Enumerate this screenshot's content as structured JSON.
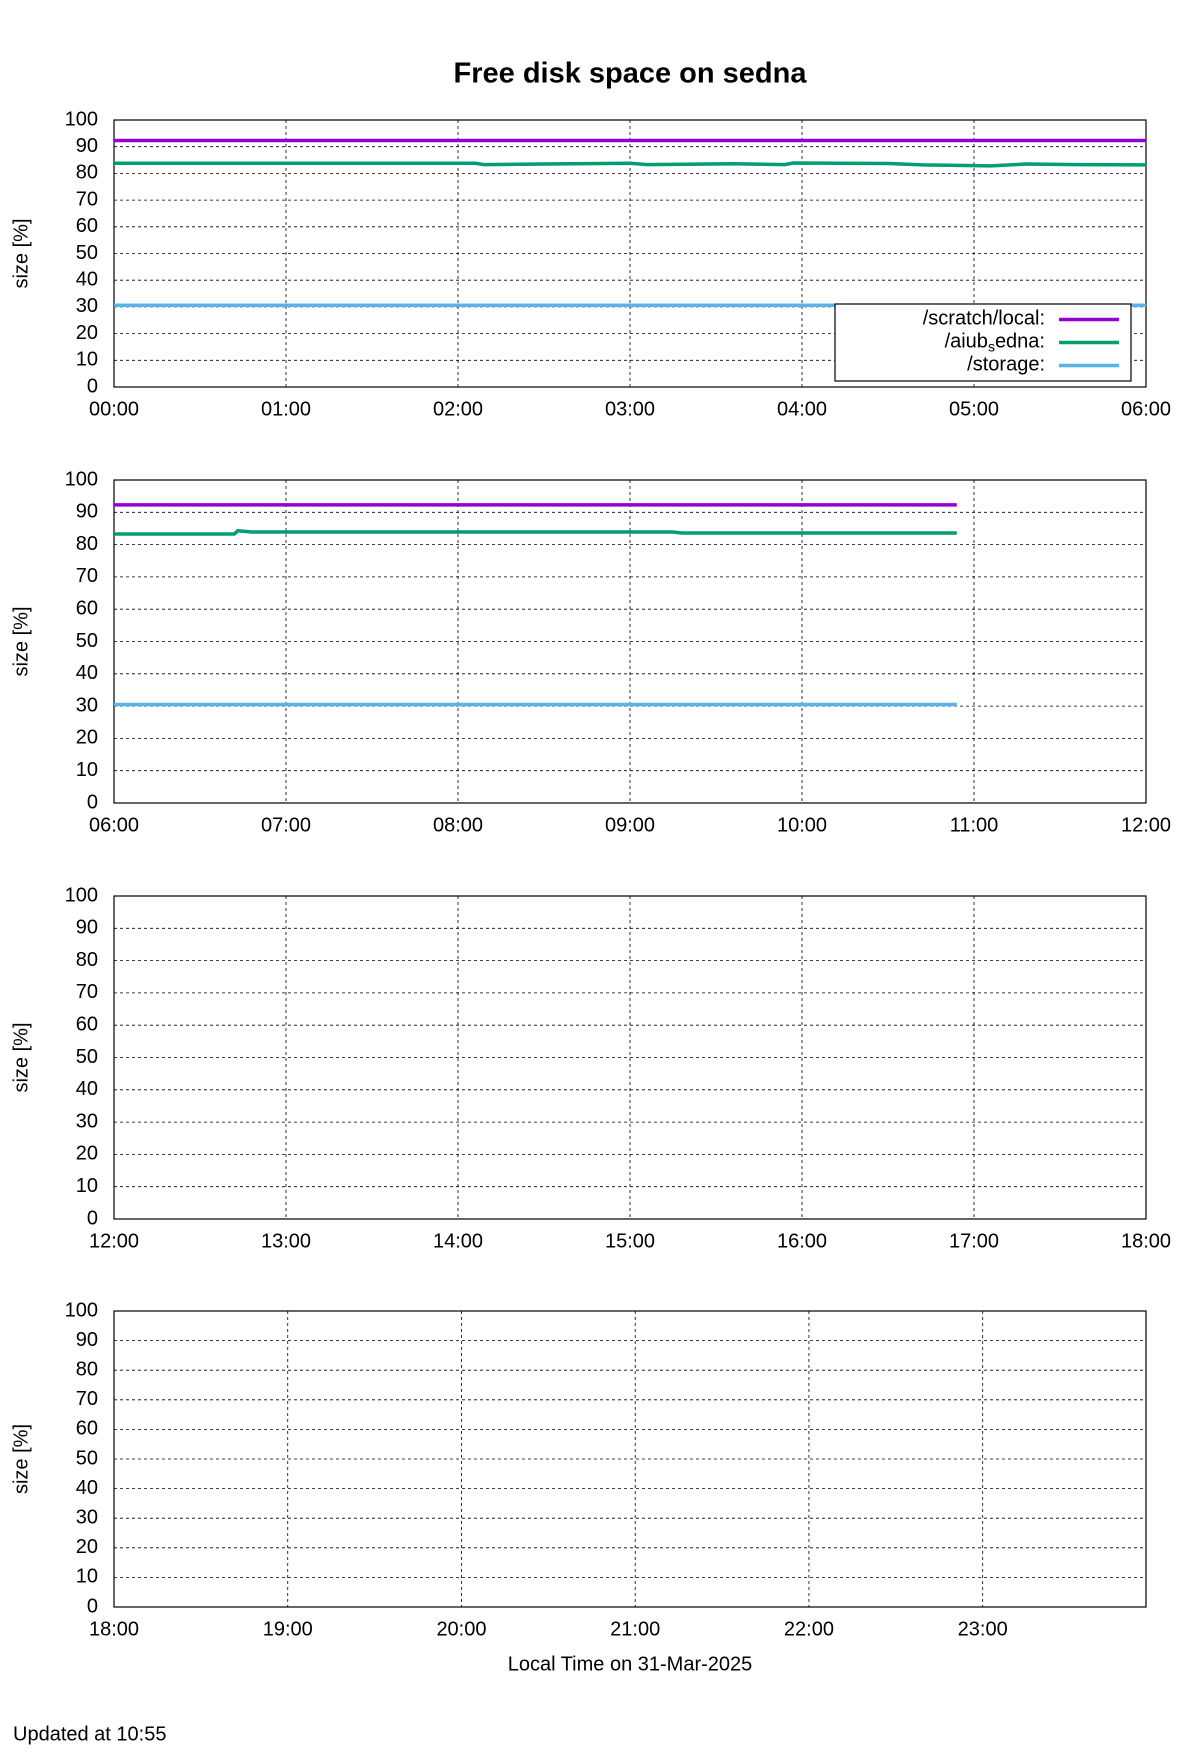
{
  "header": {
    "title": "Free disk space on sedna"
  },
  "footer": "Updated at 10:55",
  "chart_data": [
    {
      "type": "line",
      "ylabel": "size [%]",
      "legend": "bottom-right",
      "x": [
        0,
        2.1,
        2.15,
        2.5,
        3,
        3.1,
        3.6,
        3.9,
        3.95,
        4.5,
        4.7,
        5.1,
        5.3,
        5.6,
        6
      ],
      "series": [
        {
          "name": "/scratch/local:",
          "color": "#9400d3",
          "values": [
            92.3,
            92.3,
            92.3,
            92.3,
            92.3,
            92.3,
            92.3,
            92.3,
            92.3,
            92.3,
            92.3,
            92.3,
            92.3,
            92.3,
            92.3
          ]
        },
        {
          "name": "/aiub_sedna:",
          "color": "#009e73",
          "values": [
            83.8,
            83.8,
            83.3,
            83.5,
            83.8,
            83.3,
            83.6,
            83.3,
            83.9,
            83.7,
            83.2,
            82.8,
            83.5,
            83.3,
            83.2
          ]
        },
        {
          "name": "/storage:",
          "color": "#56b4e9",
          "values": [
            30.6,
            30.6,
            30.6,
            30.6,
            30.6,
            30.6,
            30.6,
            30.6,
            30.6,
            30.6,
            30.6,
            30.6,
            30.6,
            30.6,
            30.6
          ]
        }
      ],
      "xlim": [
        0,
        6
      ],
      "xticks": [
        {
          "value": 0,
          "label": "00:00"
        },
        {
          "value": 1,
          "label": "01:00"
        },
        {
          "value": 2,
          "label": "02:00"
        },
        {
          "value": 3,
          "label": "03:00"
        },
        {
          "value": 4,
          "label": "04:00"
        },
        {
          "value": 5,
          "label": "05:00"
        },
        {
          "value": 6,
          "label": "06:00"
        }
      ],
      "ylim": [
        0,
        100
      ],
      "yticks": [
        0,
        10,
        20,
        30,
        40,
        50,
        60,
        70,
        80,
        90,
        100
      ],
      "grid": true
    },
    {
      "type": "line",
      "ylabel": "size [%]",
      "x": [
        6,
        6.7,
        6.72,
        6.8,
        9.25,
        9.3,
        10.9
      ],
      "series": [
        {
          "color": "#9400d3",
          "values": [
            92.3,
            92.3,
            92.3,
            92.3,
            92.3,
            92.3,
            92.3
          ]
        },
        {
          "color": "#009e73",
          "values": [
            83.3,
            83.3,
            84.3,
            83.9,
            83.9,
            83.6,
            83.6
          ]
        },
        {
          "color": "#56b4e9",
          "values": [
            30.5,
            30.5,
            30.5,
            30.5,
            30.5,
            30.5,
            30.5
          ]
        }
      ],
      "xlim": [
        6,
        12
      ],
      "xticks": [
        {
          "value": 6,
          "label": "06:00"
        },
        {
          "value": 7,
          "label": "07:00"
        },
        {
          "value": 8,
          "label": "08:00"
        },
        {
          "value": 9,
          "label": "09:00"
        },
        {
          "value": 10,
          "label": "10:00"
        },
        {
          "value": 11,
          "label": "11:00"
        },
        {
          "value": 12,
          "label": "12:00"
        }
      ],
      "ylim": [
        0,
        100
      ],
      "yticks": [
        0,
        10,
        20,
        30,
        40,
        50,
        60,
        70,
        80,
        90,
        100
      ],
      "grid": true
    },
    {
      "type": "line",
      "ylabel": "size [%]",
      "xlim": [
        12,
        18
      ],
      "xticks": [
        {
          "value": 12,
          "label": "12:00"
        },
        {
          "value": 13,
          "label": "13:00"
        },
        {
          "value": 14,
          "label": "14:00"
        },
        {
          "value": 15,
          "label": "15:00"
        },
        {
          "value": 16,
          "label": "16:00"
        },
        {
          "value": 17,
          "label": "17:00"
        },
        {
          "value": 18,
          "label": "18:00"
        }
      ],
      "ylim": [
        0,
        100
      ],
      "yticks": [
        0,
        10,
        20,
        30,
        40,
        50,
        60,
        70,
        80,
        90,
        100
      ],
      "grid": true
    },
    {
      "type": "line",
      "ylabel": "size [%]",
      "xlabel": "Local Time on 31-Mar-2025",
      "xlim": [
        18,
        23.94
      ],
      "xticks": [
        {
          "value": 18,
          "label": "18:00"
        },
        {
          "value": 19,
          "label": "19:00"
        },
        {
          "value": 20,
          "label": "20:00"
        },
        {
          "value": 21,
          "label": "21:00"
        },
        {
          "value": 22,
          "label": "22:00"
        },
        {
          "value": 23,
          "label": "23:00"
        }
      ],
      "ylim": [
        0,
        100
      ],
      "yticks": [
        0,
        10,
        20,
        30,
        40,
        50,
        60,
        70,
        80,
        90,
        100
      ],
      "grid": true
    }
  ]
}
